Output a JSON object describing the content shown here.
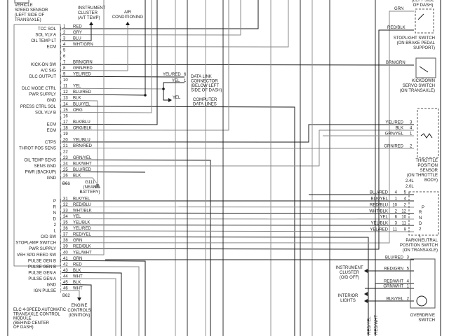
{
  "module": {
    "title_lines": [
      "ELC 4-SPEED AUTOMATIC",
      "TRANSAXLE CONTROL",
      "MODULE",
      "(BEHIND CENTER",
      "OF DASH)"
    ],
    "connector_a": "B61",
    "connector_b": "B62"
  },
  "pins": [
    {
      "pin": "1",
      "label": "TCC SOL",
      "wire": "RED"
    },
    {
      "pin": "2",
      "label": "SOL VLV A",
      "wire": "GRY"
    },
    {
      "pin": "3",
      "label": "OIL TEMP LT",
      "wire": "BLU"
    },
    {
      "pin": "4",
      "label": "ECM",
      "wire": "WHT/GRN"
    },
    {
      "pin": "5",
      "label": "",
      "wire": ""
    },
    {
      "pin": "6",
      "label": "",
      "wire": ""
    },
    {
      "pin": "7",
      "label": "KICK-DN SW",
      "wire": "BRN/GRN"
    },
    {
      "pin": "8",
      "label": "A/C SIG",
      "wire": "GRN/RED"
    },
    {
      "pin": "9",
      "label": "DLC OUTPUT",
      "wire": "YEL/RED"
    },
    {
      "pin": "10",
      "label": "",
      "wire": ""
    },
    {
      "pin": "11",
      "label": "DLC MODE CTRL",
      "wire": "YEL"
    },
    {
      "pin": "12",
      "label": "PWR SUPPLY",
      "wire": "BLU/RED"
    },
    {
      "pin": "13",
      "label": "GND",
      "wire": "BLK"
    },
    {
      "pin": "14",
      "label": "PRESS CTRL SOL",
      "wire": "BLU/YEL"
    },
    {
      "pin": "15",
      "label": "SOL VLV B",
      "wire": "ORG"
    },
    {
      "pin": "16",
      "label": "",
      "wire": ""
    },
    {
      "pin": "17",
      "label": "ECM",
      "wire": "BLK/BLU"
    },
    {
      "pin": "18",
      "label": "ECM",
      "wire": "ORG/BLK"
    },
    {
      "pin": "19",
      "label": "",
      "wire": ""
    },
    {
      "pin": "20",
      "label": "CTPS",
      "wire": "YEL/BLU"
    },
    {
      "pin": "21",
      "label": "THROT POS SENS",
      "wire": "BRN/RED"
    },
    {
      "pin": "22",
      "label": "",
      "wire": ""
    },
    {
      "pin": "23",
      "label": "OIL TEMP SENS",
      "wire": "GRN/YEL"
    },
    {
      "pin": "24",
      "label": "SENS GND",
      "wire": "BLK/WHT"
    },
    {
      "pin": "25",
      "label": "PWR (BACKUP)",
      "wire": "BLU/RED"
    },
    {
      "pin": "26",
      "label": "GND",
      "wire": "BLK"
    },
    {
      "pin": "31",
      "label": "P",
      "wire": "BLK/YEL"
    },
    {
      "pin": "32",
      "label": "R",
      "wire": "RED/BLU"
    },
    {
      "pin": "33",
      "label": "N",
      "wire": "WHT/BLK"
    },
    {
      "pin": "34",
      "label": "D",
      "wire": "YEL"
    },
    {
      "pin": "35",
      "label": "2",
      "wire": "YEL/BLK"
    },
    {
      "pin": "36",
      "label": "L",
      "wire": "YEL/RED"
    },
    {
      "pin": "37",
      "label": "O/D SW",
      "wire": "RED/YEL"
    },
    {
      "pin": "38",
      "label": "STOPLAMP SWITCH",
      "wire": "GRN"
    },
    {
      "pin": "39",
      "label": "PWR SUPPLY",
      "wire": "RED/BLK"
    },
    {
      "pin": "40",
      "label": "VEH SPD REED SW",
      "wire": "YEL/WHT"
    },
    {
      "pin": "41",
      "label": "PULSE GEN B",
      "wire": "GRN"
    },
    {
      "pin": "42",
      "label": "PULSE GEN B",
      "wire": "RED"
    },
    {
      "pin": "43",
      "label": "PULSE GEN A",
      "wire": "BLK"
    },
    {
      "pin": "44",
      "label": "PULSE GEN A",
      "wire": "WHT"
    },
    {
      "pin": "45",
      "label": "GND",
      "wire": "BLK"
    },
    {
      "pin": "46",
      "label": "IGN PULSE",
      "wire": "WHT"
    }
  ],
  "components": {
    "vss": [
      "VEHICLE",
      "SPEED SENSOR",
      "(LEFT SIDE OF",
      "TRANSAXLE)"
    ],
    "instrument_cluster_at": [
      "INSTRUMENT",
      "CLUSTER",
      "(A/T TEMP)"
    ],
    "air_conditioning": [
      "AIR",
      "CONDITIONING"
    ],
    "ground": [
      "G111",
      "(NEAR",
      "BATTERY)"
    ],
    "engine_controls": [
      "ENGINE",
      "CONTROLS",
      "(IGNITION)"
    ],
    "dlc": {
      "label": [
        "DATA LINK",
        "CONNECTOR",
        "(BELOW LEFT",
        "SIDE OF DASH)"
      ],
      "wires": [
        {
          "wire": "YEL/RED",
          "pin": "6"
        },
        {
          "wire": "YEL",
          "pin": "1"
        }
      ],
      "computer_wire": "YEL",
      "computer_label": [
        "COMPUTER",
        "DATA LINES"
      ]
    },
    "top_right_fragment": [
      "(LEFT SIDE",
      "OF DASH)"
    ],
    "stoplight": {
      "wires": [
        "GRN",
        "RED/BLK"
      ],
      "label": [
        "STOPLIGHT SWITCH",
        "(ON BRAKE PEDAL",
        "SUPPORT)"
      ]
    },
    "kickdown": {
      "wire": "BRN/GRN",
      "label": [
        "KICKDOWN",
        "SERVO SWITCH",
        "(ON TRANSAXLE)"
      ]
    },
    "tps": {
      "wires": [
        {
          "wire": "YEL/RED",
          "pin": "3"
        },
        {
          "wire": "BLK",
          "pin": "4"
        },
        {
          "wire": "GRN/YEL",
          "pin": "1"
        },
        {
          "wire": "GRN/RED",
          "pin": "2"
        }
      ],
      "label": [
        "THROTTLE",
        "POSITION",
        "SENSOR",
        "(ON THROTTLE",
        "BODY)"
      ]
    },
    "pnp": {
      "engines": [
        "2.4L",
        "2.0L"
      ],
      "wires": [
        {
          "wire": "BLU/RED",
          "pin_a": "4",
          "pin_b": "5"
        },
        {
          "wire": "BLK/YEL",
          "pin_a": "1",
          "pin_b": "4"
        },
        {
          "wire": "RED/BLU",
          "pin_a": "10",
          "pin_b": "2"
        },
        {
          "wire": "WHT/BLK",
          "pin_a": "2",
          "pin_b": "12"
        },
        {
          "wire": "YEL",
          "pin_a": "6",
          "pin_b": "10"
        },
        {
          "wire": "YEL/BLK",
          "pin_a": "3",
          "pin_b": "11"
        },
        {
          "wire": "YEL/RED",
          "pin_a": "11",
          "pin_b": "9"
        }
      ],
      "positions": [
        "P",
        "R",
        "N",
        "D",
        "2",
        "L"
      ],
      "label": [
        "PARK/NEUTRAL",
        "POSITION SWITCH",
        "(ON TRANSAXLE)"
      ]
    },
    "overdrive": {
      "wires": [
        {
          "wire": "BLU/RED",
          "pin": "3"
        },
        {
          "wire": "RED/GRN",
          "pin": "5"
        },
        {
          "wire": "RED/WHT",
          "pin": "4"
        },
        {
          "wire": "GRN/WHT",
          "pin": "1"
        },
        {
          "wire": "BLK/YEL",
          "pin": "2"
        }
      ],
      "cluster_label": [
        "INSTRUMENT",
        "CLUSTER",
        "(O/D OFF)"
      ],
      "lights_label": [
        "INTERIOR",
        "LIGHTS"
      ],
      "vertical_wires": [
        "RED/YEL",
        "RED/WHT"
      ],
      "label": [
        "OVERDRIVE",
        "SWITCH"
      ]
    }
  },
  "colors": {
    "dark_wire": "#1a1a1a",
    "gray_wire": "#8a8a8a",
    "background": "#ffffff"
  }
}
